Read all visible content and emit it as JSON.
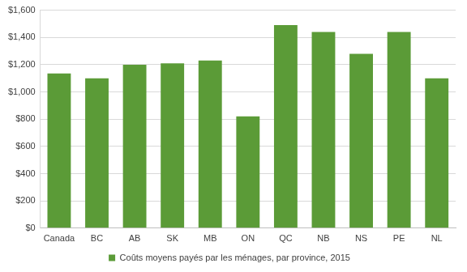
{
  "chart_data": {
    "type": "bar",
    "categories": [
      "Canada",
      "BC",
      "AB",
      "SK",
      "MB",
      "ON",
      "QC",
      "NB",
      "NS",
      "PE",
      "NL"
    ],
    "series": [
      {
        "name": "Coûts moyens payés par les ménages, par province, 2015",
        "color": "#5b9b37",
        "values": [
          1135,
          1100,
          1200,
          1210,
          1230,
          820,
          1490,
          1440,
          1280,
          1440,
          1100
        ]
      }
    ],
    "ylim": [
      0,
      1600
    ],
    "yticks": [
      {
        "value": 0,
        "label": "$0"
      },
      {
        "value": 200,
        "label": "$200"
      },
      {
        "value": 400,
        "label": "$400"
      },
      {
        "value": 600,
        "label": "$600"
      },
      {
        "value": 800,
        "label": "$800"
      },
      {
        "value": 1000,
        "label": "$1,000"
      },
      {
        "value": 1200,
        "label": "$1,200"
      },
      {
        "value": 1400,
        "label": "$1,400"
      },
      {
        "value": 1600,
        "label": "$1,600"
      }
    ],
    "grid": true,
    "legend": "bottom"
  }
}
